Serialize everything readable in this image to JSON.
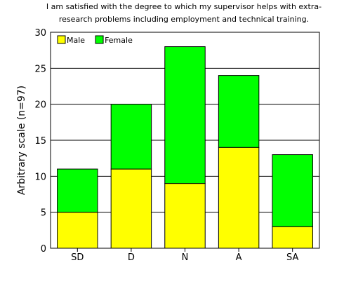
{
  "chart_data": {
    "type": "bar",
    "stacked": true,
    "title": "I am satisfied with the degree to which my supervisor helps with extra-",
    "subtitle": "research problems including employment and technical training.",
    "xlabel": "",
    "ylabel": "Arbitrary scale (n=97)",
    "categories": [
      "SD",
      "D",
      "N",
      "A",
      "SA"
    ],
    "series": [
      {
        "name": "Male",
        "color": "#ffff00",
        "values": [
          5,
          11,
          9,
          14,
          3
        ]
      },
      {
        "name": "Female",
        "color": "#00ff00",
        "values": [
          6,
          9,
          19,
          10,
          10
        ]
      }
    ],
    "ylim": [
      0,
      30
    ],
    "yticks": [
      0,
      5,
      10,
      15,
      20,
      25,
      30
    ],
    "grid": true,
    "legend_position": "top-left"
  }
}
